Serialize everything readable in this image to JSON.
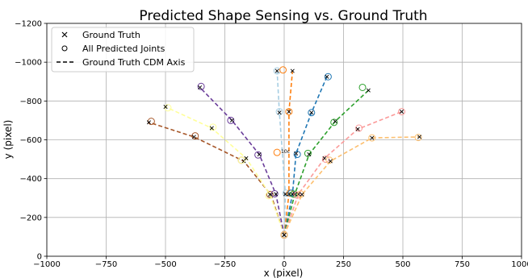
{
  "chart_data": {
    "type": "scatter",
    "title": "Predicted Shape Sensing vs. Ground Truth",
    "xlabel": "x (pixel)",
    "ylabel": "y (pixel)",
    "xlim": [
      -1000,
      1000
    ],
    "ylim": [
      0,
      -1200
    ],
    "y_inverted": true,
    "grid": true,
    "legend_placement": "top-left",
    "x_ticks": [
      -1000,
      -750,
      -500,
      -250,
      0,
      250,
      500,
      750,
      1000
    ],
    "y_ticks": [
      0,
      -200,
      -400,
      -600,
      -800,
      -1000,
      -1200
    ],
    "x_tick_labels": [
      "−1000",
      "−750",
      "−500",
      "−250",
      "0",
      "250",
      "500",
      "750",
      "1000"
    ],
    "y_tick_labels": [
      "0",
      "−200",
      "−400",
      "−600",
      "−800",
      "−1000",
      "−1200"
    ],
    "legend": [
      {
        "label": "Ground Truth",
        "marker": "x"
      },
      {
        "label": "All Predicted Joints",
        "marker": "o"
      },
      {
        "label": "Ground Truth CDM Axis",
        "marker": "dashed-line"
      }
    ],
    "series": [
      {
        "color": "#a65628",
        "points": [
          [
            0,
            -110
          ],
          [
            -55,
            -315
          ],
          [
            -170,
            -490
          ],
          [
            -380,
            -615
          ],
          [
            -570,
            -690
          ]
        ],
        "predicted": [
          [
            0,
            -110
          ],
          [
            -60,
            -318
          ],
          [
            -180,
            -495
          ],
          [
            -375,
            -620
          ],
          [
            -560,
            -695
          ]
        ]
      },
      {
        "color": "#ffff99",
        "points": [
          [
            0,
            -110
          ],
          [
            -60,
            -318
          ],
          [
            -160,
            -505
          ],
          [
            -305,
            -660
          ],
          [
            -500,
            -770
          ]
        ],
        "predicted": [
          [
            0,
            -110
          ],
          [
            -65,
            -312
          ],
          [
            -180,
            -495
          ],
          [
            -300,
            -665
          ],
          [
            -490,
            -765
          ]
        ]
      },
      {
        "color": "#6a3d9a",
        "points": [
          [
            0,
            -110
          ],
          [
            -35,
            -320
          ],
          [
            -105,
            -525
          ],
          [
            -220,
            -700
          ],
          [
            -355,
            -870
          ]
        ],
        "predicted": [
          [
            0,
            -110
          ],
          [
            -40,
            -322
          ],
          [
            -110,
            -522
          ],
          [
            -225,
            -700
          ],
          [
            -350,
            -875
          ]
        ]
      },
      {
        "color": "#a6cee3",
        "points": [
          [
            0,
            -110
          ],
          [
            5,
            -320
          ],
          [
            -20,
            -740
          ],
          [
            -30,
            -955
          ]
        ],
        "predicted": [
          [
            0,
            -110
          ],
          [
            8,
            -325
          ],
          [
            -20,
            -745
          ],
          [
            -30,
            -955
          ]
        ]
      },
      {
        "color": "#ff7f0e",
        "points": [
          [
            0,
            -110
          ],
          [
            20,
            -320
          ],
          [
            20,
            -745
          ],
          [
            35,
            -955
          ]
        ],
        "predicted": [
          [
            0,
            -110
          ],
          [
            25,
            -325
          ],
          [
            -30,
            -535
          ],
          [
            20,
            -745
          ],
          [
            -5,
            -960
          ]
        ]
      },
      {
        "color": "#1f77b4",
        "points": [
          [
            0,
            -110
          ],
          [
            35,
            -320
          ],
          [
            50,
            -530
          ],
          [
            115,
            -740
          ],
          [
            180,
            -925
          ]
        ],
        "predicted": [
          [
            0,
            -110
          ],
          [
            30,
            -325
          ],
          [
            55,
            -525
          ],
          [
            115,
            -740
          ],
          [
            185,
            -925
          ]
        ]
      },
      {
        "color": "#2ca02c",
        "points": [
          [
            0,
            -110
          ],
          [
            45,
            -320
          ],
          [
            105,
            -525
          ],
          [
            215,
            -695
          ],
          [
            355,
            -855
          ]
        ],
        "predicted": [
          [
            0,
            -110
          ],
          [
            40,
            -320
          ],
          [
            100,
            -530
          ],
          [
            210,
            -690
          ],
          [
            330,
            -870
          ]
        ]
      },
      {
        "color": "#fb9a99",
        "points": [
          [
            0,
            -110
          ],
          [
            60,
            -320
          ],
          [
            170,
            -505
          ],
          [
            310,
            -655
          ],
          [
            495,
            -745
          ]
        ],
        "predicted": [
          [
            0,
            -110
          ],
          [
            55,
            -315
          ],
          [
            175,
            -500
          ],
          [
            315,
            -660
          ],
          [
            495,
            -745
          ]
        ]
      },
      {
        "color": "#fdbf6f",
        "points": [
          [
            0,
            -110
          ],
          [
            75,
            -318
          ],
          [
            195,
            -490
          ],
          [
            370,
            -610
          ],
          [
            570,
            -615
          ]
        ],
        "predicted": [
          [
            0,
            -110
          ],
          [
            70,
            -320
          ],
          [
            190,
            -495
          ],
          [
            370,
            -610
          ],
          [
            565,
            -612
          ]
        ]
      }
    ],
    "annotations": [
      {
        "text": "10c",
        "x": 0,
        "y": -540
      }
    ]
  }
}
